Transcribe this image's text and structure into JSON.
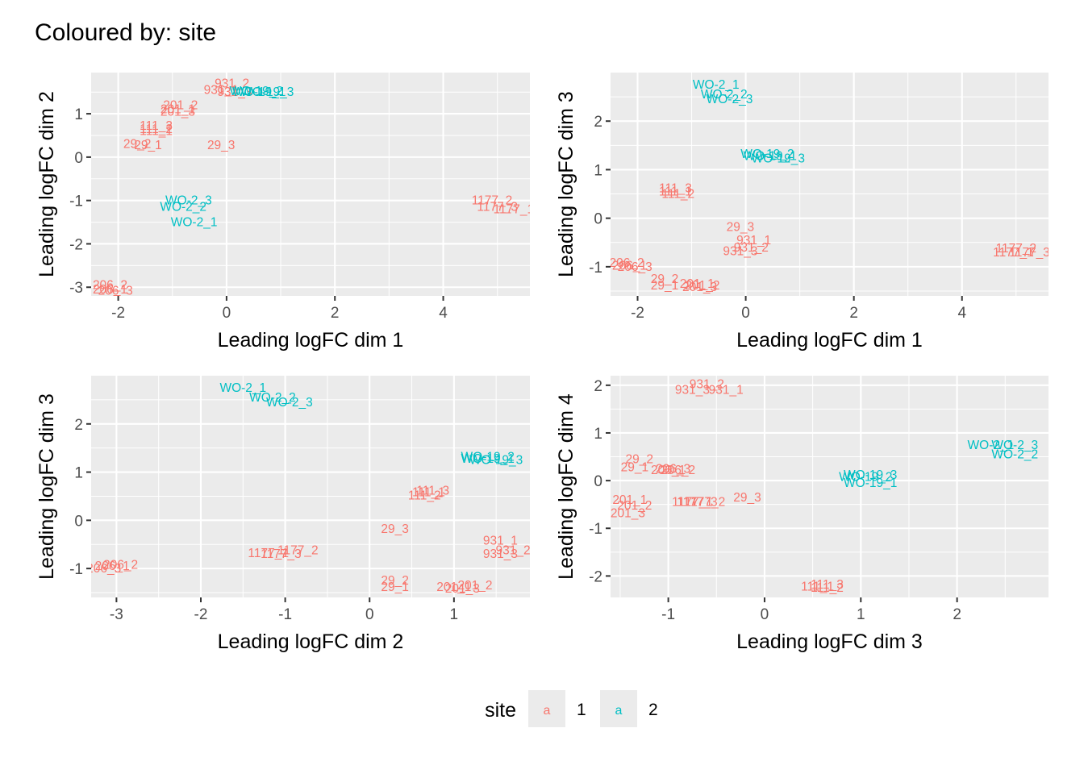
{
  "title": "Coloured by: site",
  "colors": {
    "site_1": "#F8766D",
    "site_2": "#00BFC4"
  },
  "legend": {
    "title": "site",
    "position": "bottom",
    "entries": [
      {
        "key_glyph": "a",
        "label": "1",
        "color": "#F8766D"
      },
      {
        "key_glyph": "a",
        "label": "2",
        "color": "#00BFC4"
      }
    ]
  },
  "chart_data": [
    {
      "type": "scatter",
      "xlabel": "Leading logFC dim 1",
      "ylabel": "Leading logFC dim 2",
      "xlim": [
        -2.5,
        5.6
      ],
      "ylim": [
        -3.2,
        1.95
      ],
      "xticks": [
        -2,
        0,
        2,
        4
      ],
      "yticks": [
        -3,
        -2,
        -1,
        0,
        1
      ],
      "points": [
        {
          "label": "931_2",
          "x": 0.1,
          "y": 1.7,
          "site": "1"
        },
        {
          "label": "931_1",
          "x": -0.1,
          "y": 1.55,
          "site": "1"
        },
        {
          "label": "931_3",
          "x": 0.15,
          "y": 1.5,
          "site": "1"
        },
        {
          "label": "WO-19_2",
          "x": 0.55,
          "y": 1.52,
          "site": "2"
        },
        {
          "label": "WO-19_1",
          "x": 0.6,
          "y": 1.5,
          "site": "2"
        },
        {
          "label": "WO-19_3",
          "x": 0.75,
          "y": 1.5,
          "site": "2"
        },
        {
          "label": "201_2",
          "x": -0.85,
          "y": 1.2,
          "site": "1"
        },
        {
          "label": "201_1",
          "x": -0.9,
          "y": 1.1,
          "site": "1"
        },
        {
          "label": "201_3",
          "x": -0.9,
          "y": 1.05,
          "site": "1"
        },
        {
          "label": "111_3",
          "x": -1.3,
          "y": 0.72,
          "site": "1"
        },
        {
          "label": "111_2",
          "x": -1.3,
          "y": 0.65,
          "site": "1"
        },
        {
          "label": "111_1",
          "x": -1.3,
          "y": 0.6,
          "site": "1"
        },
        {
          "label": "29_2",
          "x": -1.65,
          "y": 0.3,
          "site": "1"
        },
        {
          "label": "29_1",
          "x": -1.45,
          "y": 0.28,
          "site": "1"
        },
        {
          "label": "29_3",
          "x": -0.1,
          "y": 0.28,
          "site": "1"
        },
        {
          "label": "WO-2_3",
          "x": -0.7,
          "y": -1.0,
          "site": "2"
        },
        {
          "label": "WO-2_2",
          "x": -0.8,
          "y": -1.15,
          "site": "2"
        },
        {
          "label": "WO-2_1",
          "x": -0.6,
          "y": -1.5,
          "site": "2"
        },
        {
          "label": "1177_2",
          "x": 4.9,
          "y": -1.0,
          "site": "1"
        },
        {
          "label": "1177_3",
          "x": 5.0,
          "y": -1.15,
          "site": "1"
        },
        {
          "label": "1177_1",
          "x": 5.3,
          "y": -1.2,
          "site": "1"
        },
        {
          "label": "206_2",
          "x": -2.15,
          "y": -2.95,
          "site": "1"
        },
        {
          "label": "206_1",
          "x": -2.15,
          "y": -3.05,
          "site": "1"
        },
        {
          "label": "206_3",
          "x": -2.05,
          "y": -3.08,
          "site": "1"
        }
      ]
    },
    {
      "type": "scatter",
      "xlabel": "Leading logFC dim 1",
      "ylabel": "Leading logFC dim 3",
      "xlim": [
        -2.5,
        5.6
      ],
      "ylim": [
        -1.6,
        3.0
      ],
      "xticks": [
        -2,
        0,
        2,
        4
      ],
      "yticks": [
        -1,
        0,
        1,
        2
      ],
      "points": [
        {
          "label": "WO-2_1",
          "x": -0.55,
          "y": 2.75,
          "site": "2"
        },
        {
          "label": "WO-2_2",
          "x": -0.4,
          "y": 2.55,
          "site": "2"
        },
        {
          "label": "WO-2_3",
          "x": -0.3,
          "y": 2.45,
          "site": "2"
        },
        {
          "label": "WO-19_2",
          "x": 0.4,
          "y": 1.32,
          "site": "2"
        },
        {
          "label": "WO-19_1",
          "x": 0.45,
          "y": 1.28,
          "site": "2"
        },
        {
          "label": "WO-19_3",
          "x": 0.6,
          "y": 1.23,
          "site": "2"
        },
        {
          "label": "111_3",
          "x": -1.3,
          "y": 0.62,
          "site": "1"
        },
        {
          "label": "111_1",
          "x": -1.3,
          "y": 0.55,
          "site": "1"
        },
        {
          "label": "111_2",
          "x": -1.25,
          "y": 0.5,
          "site": "1"
        },
        {
          "label": "29_3",
          "x": -0.1,
          "y": -0.18,
          "site": "1"
        },
        {
          "label": "931_1",
          "x": 0.15,
          "y": -0.45,
          "site": "1"
        },
        {
          "label": "931_2",
          "x": 0.1,
          "y": -0.6,
          "site": "1"
        },
        {
          "label": "931_3",
          "x": -0.1,
          "y": -0.68,
          "site": "1"
        },
        {
          "label": "1177_2",
          "x": 5.0,
          "y": -0.62,
          "site": "1"
        },
        {
          "label": "1177_1",
          "x": 4.95,
          "y": -0.7,
          "site": "1"
        },
        {
          "label": "1177_3",
          "x": 5.25,
          "y": -0.7,
          "site": "1"
        },
        {
          "label": "206_2",
          "x": -2.2,
          "y": -0.92,
          "site": "1"
        },
        {
          "label": "206_1",
          "x": -2.15,
          "y": -0.98,
          "site": "1"
        },
        {
          "label": "206_3",
          "x": -2.05,
          "y": -1.0,
          "site": "1"
        },
        {
          "label": "29_2",
          "x": -1.5,
          "y": -1.25,
          "site": "1"
        },
        {
          "label": "29_1",
          "x": -1.5,
          "y": -1.38,
          "site": "1"
        },
        {
          "label": "201_1",
          "x": -0.9,
          "y": -1.35,
          "site": "1"
        },
        {
          "label": "201_2",
          "x": -0.8,
          "y": -1.38,
          "site": "1"
        },
        {
          "label": "201_3",
          "x": -0.85,
          "y": -1.42,
          "site": "1"
        }
      ]
    },
    {
      "type": "scatter",
      "xlabel": "Leading logFC dim 2",
      "ylabel": "Leading logFC dim 3",
      "xlim": [
        -3.3,
        1.9
      ],
      "ylim": [
        -1.6,
        3.0
      ],
      "xticks": [
        -3,
        -2,
        -1,
        0,
        1
      ],
      "yticks": [
        -1,
        0,
        1,
        2
      ],
      "points": [
        {
          "label": "WO-2_1",
          "x": -1.5,
          "y": 2.75,
          "site": "2"
        },
        {
          "label": "WO-2_2",
          "x": -1.15,
          "y": 2.55,
          "site": "2"
        },
        {
          "label": "WO-2_3",
          "x": -0.95,
          "y": 2.45,
          "site": "2"
        },
        {
          "label": "WO-19_2",
          "x": 1.4,
          "y": 1.32,
          "site": "2"
        },
        {
          "label": "WO-19_1",
          "x": 1.4,
          "y": 1.28,
          "site": "2"
        },
        {
          "label": "WO-19_3",
          "x": 1.5,
          "y": 1.25,
          "site": "2"
        },
        {
          "label": "111_3",
          "x": 0.75,
          "y": 0.62,
          "site": "1"
        },
        {
          "label": "111_1",
          "x": 0.7,
          "y": 0.58,
          "site": "1"
        },
        {
          "label": "111_2",
          "x": 0.65,
          "y": 0.52,
          "site": "1"
        },
        {
          "label": "29_3",
          "x": 0.3,
          "y": -0.18,
          "site": "1"
        },
        {
          "label": "931_1",
          "x": 1.55,
          "y": -0.42,
          "site": "1"
        },
        {
          "label": "931_2",
          "x": 1.7,
          "y": -0.62,
          "site": "1"
        },
        {
          "label": "931_3",
          "x": 1.55,
          "y": -0.7,
          "site": "1"
        },
        {
          "label": "1177_2",
          "x": -0.85,
          "y": -0.62,
          "site": "1"
        },
        {
          "label": "1177_1",
          "x": -1.2,
          "y": -0.68,
          "site": "1"
        },
        {
          "label": "1177_3",
          "x": -1.05,
          "y": -0.7,
          "site": "1"
        },
        {
          "label": "206_2",
          "x": -2.95,
          "y": -0.92,
          "site": "1"
        },
        {
          "label": "206_1",
          "x": -3.05,
          "y": -0.95,
          "site": "1"
        },
        {
          "label": "206_3",
          "x": -3.15,
          "y": -1.0,
          "site": "1"
        },
        {
          "label": "29_2",
          "x": 0.3,
          "y": -1.25,
          "site": "1"
        },
        {
          "label": "29_1",
          "x": 0.3,
          "y": -1.38,
          "site": "1"
        },
        {
          "label": "201_2",
          "x": 1.25,
          "y": -1.35,
          "site": "1"
        },
        {
          "label": "201_1",
          "x": 1.0,
          "y": -1.38,
          "site": "1"
        },
        {
          "label": "201_3",
          "x": 1.1,
          "y": -1.42,
          "site": "1"
        }
      ]
    },
    {
      "type": "scatter",
      "xlabel": "Leading logFC dim 3",
      "ylabel": "Leading logFC dim 4",
      "xlim": [
        -1.6,
        2.95
      ],
      "ylim": [
        -2.45,
        2.2
      ],
      "xticks": [
        -1,
        0,
        1,
        2
      ],
      "yticks": [
        -2,
        -1,
        0,
        1,
        2
      ],
      "points": [
        {
          "label": "931_2",
          "x": -0.6,
          "y": 2.02,
          "site": "1"
        },
        {
          "label": "931_3",
          "x": -0.75,
          "y": 1.9,
          "site": "1"
        },
        {
          "label": "931_1",
          "x": -0.4,
          "y": 1.9,
          "site": "1"
        },
        {
          "label": "WO-2_1",
          "x": 2.35,
          "y": 0.75,
          "site": "2"
        },
        {
          "label": "WO-2_3",
          "x": 2.6,
          "y": 0.75,
          "site": "2"
        },
        {
          "label": "WO-2_2",
          "x": 2.6,
          "y": 0.55,
          "site": "2"
        },
        {
          "label": "29_2",
          "x": -1.3,
          "y": 0.45,
          "site": "1"
        },
        {
          "label": "29_1",
          "x": -1.35,
          "y": 0.28,
          "site": "1"
        },
        {
          "label": "206_3",
          "x": -0.95,
          "y": 0.25,
          "site": "1"
        },
        {
          "label": "206_1",
          "x": -1.0,
          "y": 0.22,
          "site": "1"
        },
        {
          "label": "206_2",
          "x": -0.9,
          "y": 0.22,
          "site": "1"
        },
        {
          "label": "WO-19_3",
          "x": 1.1,
          "y": 0.12,
          "site": "2"
        },
        {
          "label": "WO-19_2",
          "x": 1.05,
          "y": 0.08,
          "site": "2"
        },
        {
          "label": "WO-19_1",
          "x": 1.1,
          "y": -0.05,
          "site": "2"
        },
        {
          "label": "201_1",
          "x": -1.4,
          "y": -0.4,
          "site": "1"
        },
        {
          "label": "201_2",
          "x": -1.35,
          "y": -0.52,
          "site": "1"
        },
        {
          "label": "201_3",
          "x": -1.42,
          "y": -0.68,
          "site": "1"
        },
        {
          "label": "29_3",
          "x": -0.18,
          "y": -0.35,
          "site": "1"
        },
        {
          "label": "1177_2",
          "x": -0.62,
          "y": -0.45,
          "site": "1"
        },
        {
          "label": "1177_1",
          "x": -0.75,
          "y": -0.45,
          "site": "1"
        },
        {
          "label": "1177_3",
          "x": -0.7,
          "y": -0.45,
          "site": "1"
        },
        {
          "label": "111_3",
          "x": 0.65,
          "y": -2.18,
          "site": "1"
        },
        {
          "label": "111_1",
          "x": 0.55,
          "y": -2.22,
          "site": "1"
        },
        {
          "label": "111_2",
          "x": 0.65,
          "y": -2.25,
          "site": "1"
        }
      ]
    }
  ]
}
